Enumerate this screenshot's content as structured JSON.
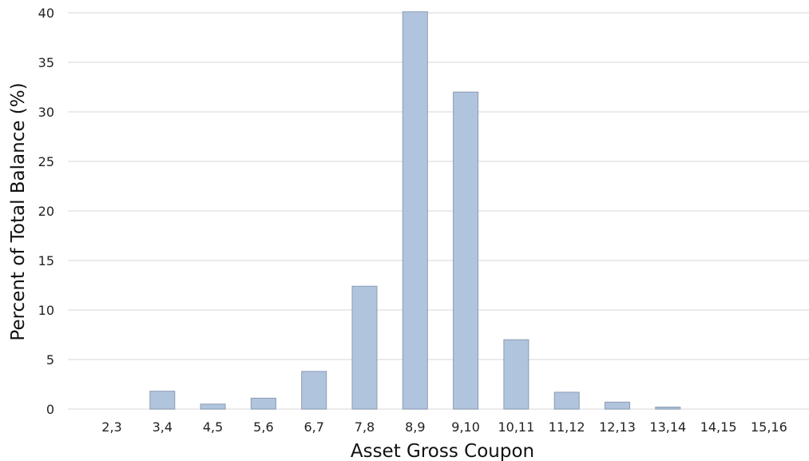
{
  "chart_data": {
    "type": "bar",
    "title": "",
    "xlabel": "Asset Gross Coupon",
    "ylabel": "Percent of Total Balance (%)",
    "categories": [
      "2,3",
      "3,4",
      "4,5",
      "5,6",
      "6,7",
      "7,8",
      "8,9",
      "9,10",
      "10,11",
      "11,12",
      "12,13",
      "13,14",
      "14,15",
      "15,16"
    ],
    "values": [
      0.0,
      1.8,
      0.5,
      1.1,
      3.8,
      12.4,
      40.1,
      32.0,
      7.0,
      1.7,
      0.7,
      0.2,
      0.0,
      0.0
    ],
    "ylim": [
      0,
      40
    ],
    "yticks": [
      0,
      5,
      10,
      15,
      20,
      25,
      30,
      35,
      40
    ],
    "grid": "horizontal",
    "bar_color": "#b0c4de"
  }
}
